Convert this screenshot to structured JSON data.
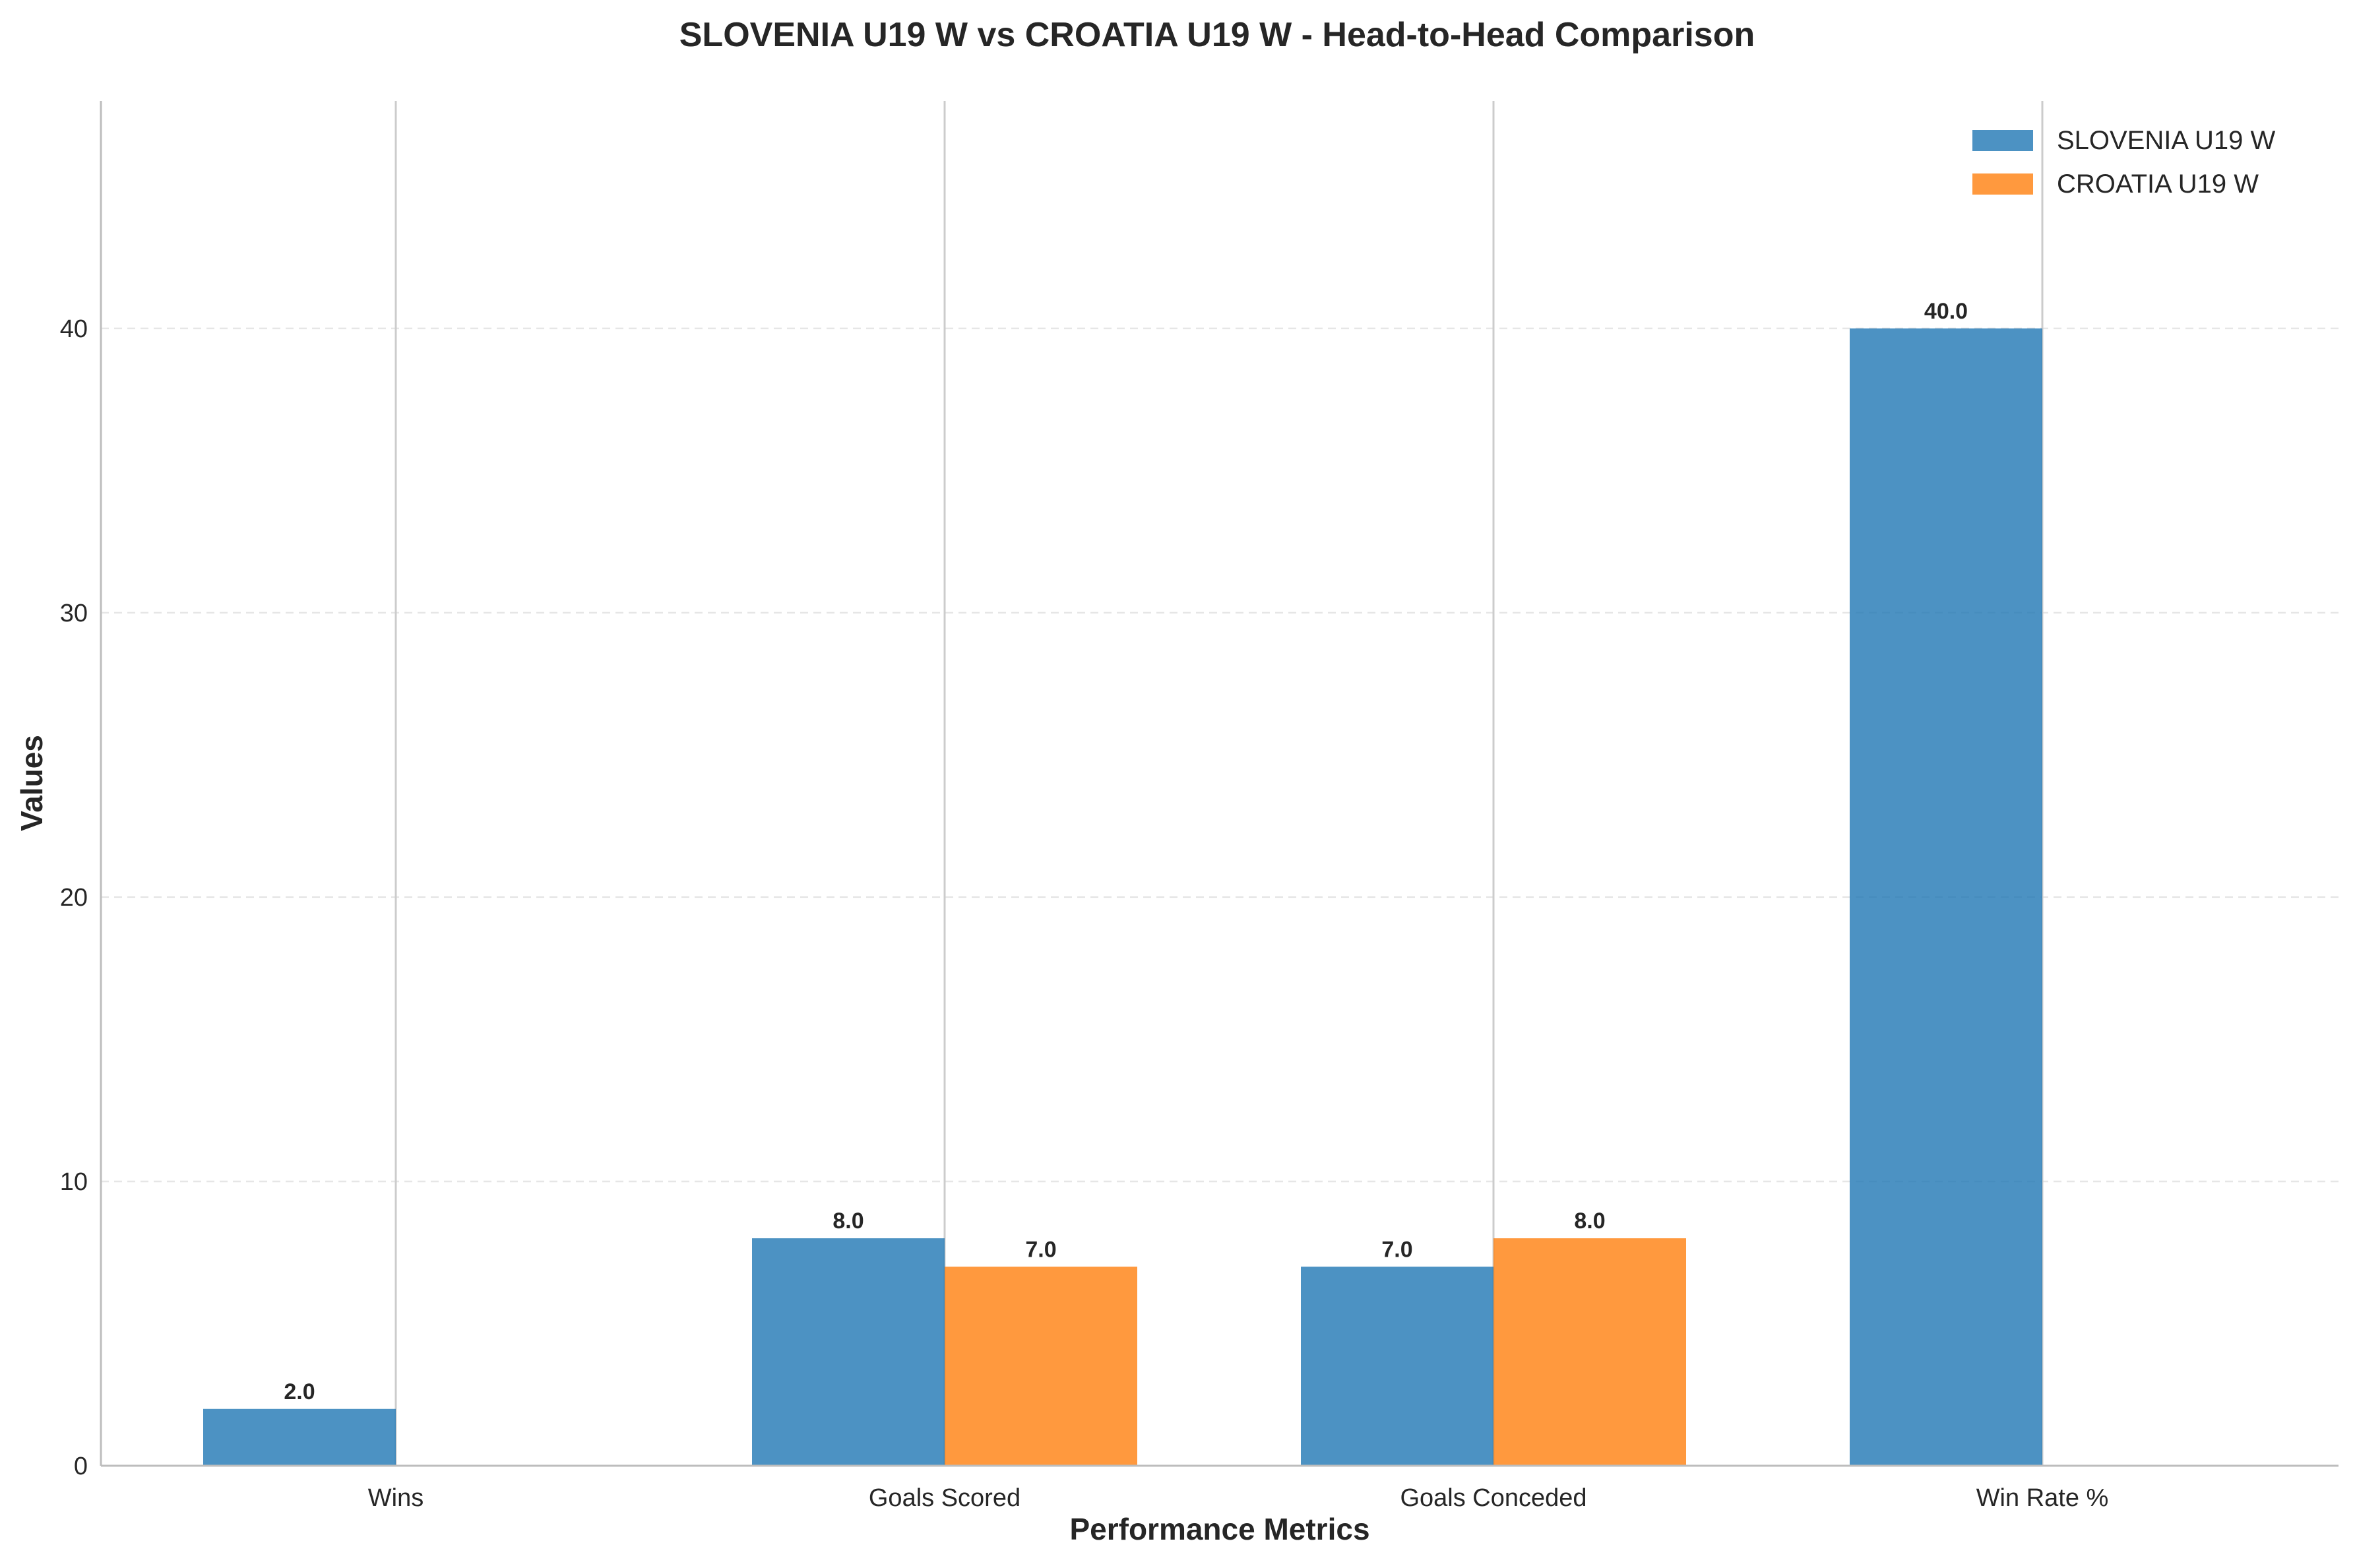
{
  "chart_data": {
    "type": "bar",
    "title": "SLOVENIA U19 W vs CROATIA U19 W - Head-to-Head Comparison",
    "xlabel": "Performance Metrics",
    "ylabel": "Values",
    "categories": [
      "Wins",
      "Goals Scored",
      "Goals Conceded",
      "Win Rate %"
    ],
    "series": [
      {
        "name": "SLOVENIA U19 W",
        "color": "#1f77b4",
        "values": [
          2.0,
          8.0,
          7.0,
          40.0
        ],
        "labels": [
          "2.0",
          "8.0",
          "7.0",
          "40.0"
        ]
      },
      {
        "name": "CROATIA U19 W",
        "color": "#ff7f0e",
        "values": [
          0.0,
          7.0,
          8.0,
          0.0
        ],
        "labels": [
          "",
          "7.0",
          "8.0",
          ""
        ]
      }
    ],
    "ylim": [
      0,
      48
    ],
    "yticks": [
      0,
      10,
      20,
      30,
      40
    ],
    "ytick_labels": [
      "0",
      "10",
      "20",
      "30",
      "40"
    ],
    "grid": "y dashed",
    "legend": "top-right"
  }
}
